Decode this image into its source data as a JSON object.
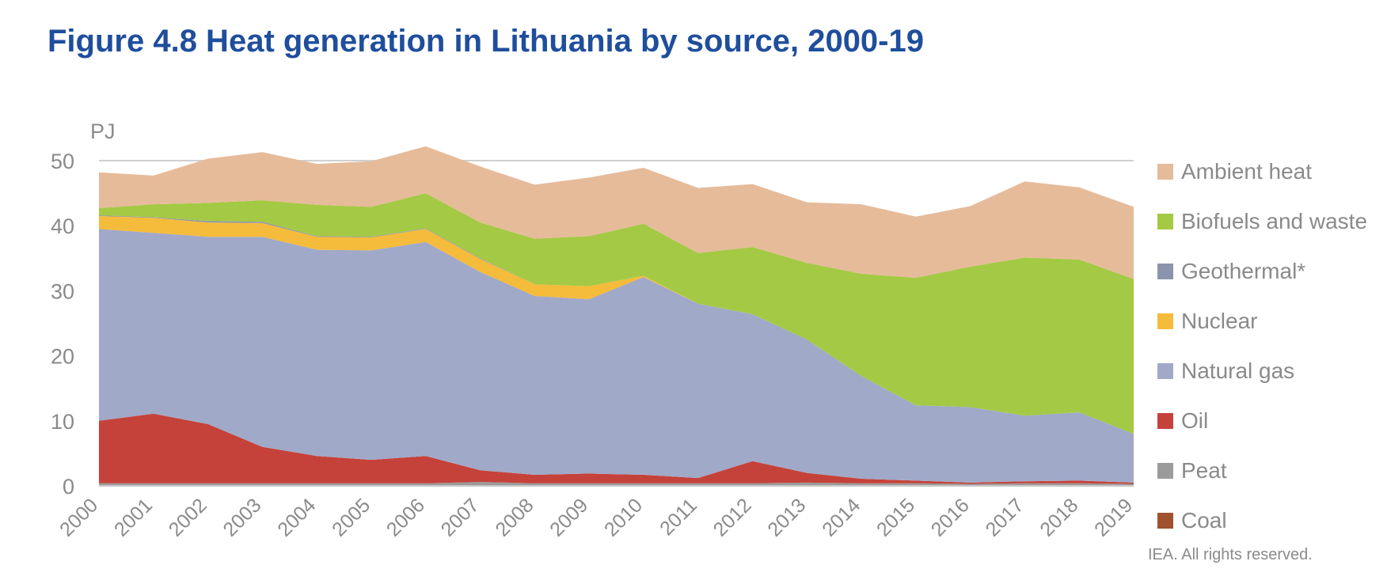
{
  "title": "Figure 4.8 Heat generation in Lithuania by source, 2000-19",
  "source_note": "IEA. All rights reserved.",
  "chart_data": {
    "type": "area",
    "stacked": true,
    "title": "Figure 4.8 Heat generation in Lithuania by source, 2000-19",
    "ylabel": "PJ",
    "xlabel": "",
    "ylim": [
      0,
      50
    ],
    "yticks": [
      0,
      10,
      20,
      30,
      40,
      50
    ],
    "grid": true,
    "legend_position": "right",
    "x": [
      "2000",
      "2001",
      "2002",
      "2003",
      "2004",
      "2005",
      "2006",
      "2007",
      "2008",
      "2009",
      "2010",
      "2011",
      "2012",
      "2013",
      "2014",
      "2015",
      "2016",
      "2017",
      "2018",
      "2019"
    ],
    "series": [
      {
        "name": "Coal",
        "color": "#a0522d",
        "values": [
          0.1,
          0.1,
          0.1,
          0.1,
          0.1,
          0.1,
          0.1,
          0.1,
          0.1,
          0.1,
          0.1,
          0.1,
          0.1,
          0.1,
          0.1,
          0.1,
          0.1,
          0.1,
          0.1,
          0.1
        ]
      },
      {
        "name": "Peat",
        "color": "#9b9b9b",
        "values": [
          0.3,
          0.3,
          0.3,
          0.3,
          0.3,
          0.3,
          0.3,
          0.5,
          0.3,
          0.3,
          0.3,
          0.3,
          0.3,
          0.4,
          0.3,
          0.3,
          0.2,
          0.3,
          0.3,
          0.2
        ]
      },
      {
        "name": "Oil",
        "color": "#c5423a",
        "values": [
          9.6,
          10.7,
          9.1,
          5.6,
          4.2,
          3.6,
          4.2,
          1.8,
          1.3,
          1.5,
          1.3,
          0.8,
          3.4,
          1.5,
          0.7,
          0.4,
          0.2,
          0.3,
          0.4,
          0.2
        ]
      },
      {
        "name": "Natural gas",
        "color": "#a0a9c8",
        "values": [
          29.5,
          27.8,
          28.8,
          32.3,
          31.7,
          32.2,
          32.9,
          30.5,
          27.5,
          26.8,
          30.4,
          26.8,
          22.6,
          20.5,
          15.8,
          11.6,
          11.6,
          10.1,
          10.5,
          7.5
        ]
      },
      {
        "name": "Nuclear",
        "color": "#f5bb3a",
        "values": [
          2.0,
          2.3,
          2.2,
          2.1,
          2.0,
          2.0,
          2.0,
          2.0,
          1.8,
          2.0,
          0.2,
          0,
          0,
          0,
          0,
          0,
          0,
          0,
          0,
          0
        ]
      },
      {
        "name": "Geothermal*",
        "color": "#8a94ac",
        "values": [
          0.1,
          0.1,
          0.2,
          0.2,
          0.1,
          0.1,
          0.1,
          0.1,
          0,
          0,
          0,
          0,
          0,
          0,
          0,
          0,
          0,
          0,
          0,
          0
        ]
      },
      {
        "name": "Biofuels and waste",
        "color": "#a4c945",
        "values": [
          1.1,
          2.0,
          2.8,
          3.3,
          4.8,
          4.6,
          5.4,
          5.5,
          7.0,
          7.7,
          8.0,
          7.8,
          10.3,
          11.8,
          15.7,
          19.6,
          21.6,
          24.3,
          23.5,
          23.8
        ]
      },
      {
        "name": "Ambient heat",
        "color": "#e6bb9a",
        "values": [
          5.5,
          4.4,
          6.8,
          7.4,
          6.3,
          7.0,
          7.2,
          8.6,
          8.3,
          9.0,
          8.6,
          10.0,
          9.7,
          9.3,
          10.7,
          9.4,
          9.3,
          11.7,
          11.1,
          11.1
        ]
      }
    ],
    "legend_order": [
      "Ambient heat",
      "Biofuels and waste",
      "Geothermal*",
      "Nuclear",
      "Natural gas",
      "Oil",
      "Peat",
      "Coal"
    ]
  }
}
